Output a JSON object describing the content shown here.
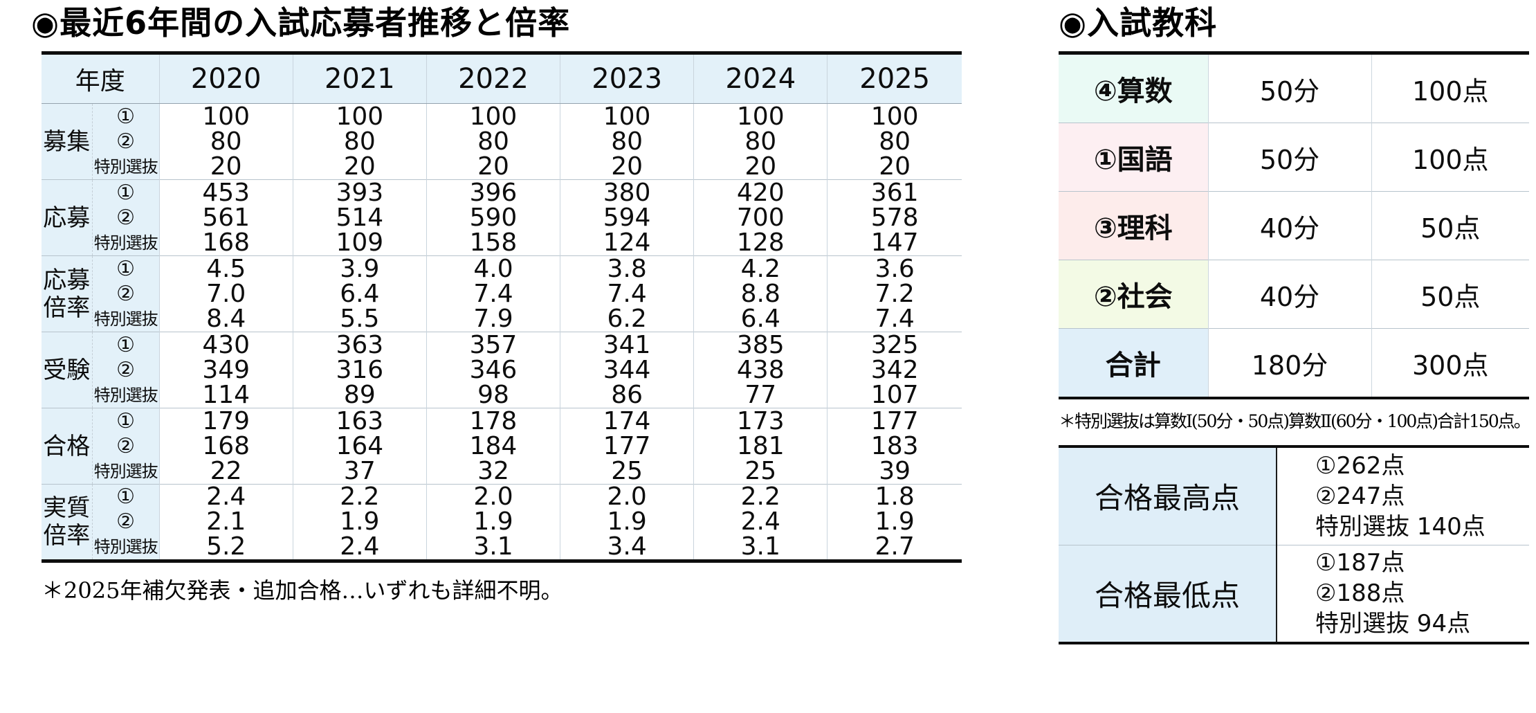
{
  "left": {
    "title": "◉最近6年間の入試応募者推移と倍率",
    "table": {
      "year_label": "年度",
      "years": [
        "2020",
        "2021",
        "2022",
        "2023",
        "2024",
        "2025"
      ],
      "sub_labels": [
        "①",
        "②",
        "特別選抜"
      ],
      "rows": [
        {
          "category": "募集",
          "values": [
            [
              "100",
              "80",
              "20"
            ],
            [
              "100",
              "80",
              "20"
            ],
            [
              "100",
              "80",
              "20"
            ],
            [
              "100",
              "80",
              "20"
            ],
            [
              "100",
              "80",
              "20"
            ],
            [
              "100",
              "80",
              "20"
            ]
          ]
        },
        {
          "category": "応募",
          "values": [
            [
              "453",
              "561",
              "168"
            ],
            [
              "393",
              "514",
              "109"
            ],
            [
              "396",
              "590",
              "158"
            ],
            [
              "380",
              "594",
              "124"
            ],
            [
              "420",
              "700",
              "128"
            ],
            [
              "361",
              "578",
              "147"
            ]
          ]
        },
        {
          "category": "応募倍率",
          "values": [
            [
              "4.5",
              "7.0",
              "8.4"
            ],
            [
              "3.9",
              "6.4",
              "5.5"
            ],
            [
              "4.0",
              "7.4",
              "7.9"
            ],
            [
              "3.8",
              "7.4",
              "6.2"
            ],
            [
              "4.2",
              "8.8",
              "6.4"
            ],
            [
              "3.6",
              "7.2",
              "7.4"
            ]
          ]
        },
        {
          "category": "受験",
          "values": [
            [
              "430",
              "349",
              "114"
            ],
            [
              "363",
              "316",
              "89"
            ],
            [
              "357",
              "346",
              "98"
            ],
            [
              "341",
              "344",
              "86"
            ],
            [
              "385",
              "438",
              "77"
            ],
            [
              "325",
              "342",
              "107"
            ]
          ]
        },
        {
          "category": "合格",
          "values": [
            [
              "179",
              "168",
              "22"
            ],
            [
              "163",
              "164",
              "37"
            ],
            [
              "178",
              "184",
              "32"
            ],
            [
              "174",
              "177",
              "25"
            ],
            [
              "173",
              "181",
              "25"
            ],
            [
              "177",
              "183",
              "39"
            ]
          ]
        },
        {
          "category": "実質倍率",
          "values": [
            [
              "2.4",
              "2.1",
              "5.2"
            ],
            [
              "2.2",
              "1.9",
              "2.4"
            ],
            [
              "2.0",
              "1.9",
              "3.1"
            ],
            [
              "2.0",
              "1.9",
              "3.4"
            ],
            [
              "2.2",
              "2.4",
              "3.1"
            ],
            [
              "1.8",
              "1.9",
              "2.7"
            ]
          ]
        }
      ]
    },
    "footnote": "＊2025年補欠発表・追加合格…いずれも詳細不明。"
  },
  "right": {
    "title": "◉入試教科",
    "subjects": {
      "rows": [
        {
          "label": "④算数",
          "time": "50分",
          "points": "100点",
          "color": "#eafaf5"
        },
        {
          "label": "①国語",
          "time": "50分",
          "points": "100点",
          "color": "#fdeff2"
        },
        {
          "label": "③理科",
          "time": "40分",
          "points": "50点",
          "color": "#fdeceb"
        },
        {
          "label": "②社会",
          "time": "40分",
          "points": "50点",
          "color": "#f3fae5"
        },
        {
          "label": "合計",
          "time": "180分",
          "points": "300点",
          "color": "#e0eff9"
        }
      ]
    },
    "footnote": "＊特別選抜は算数Ⅰ(50分・50点)算数Ⅱ(60分・100点)合計150点。",
    "scores": {
      "rows": [
        {
          "label": "合格最高点",
          "lines": [
            "①262点",
            "②247点",
            "特別選抜 140点"
          ]
        },
        {
          "label": "合格最低点",
          "lines": [
            "①187点",
            "②188点",
            "特別選抜 94点"
          ]
        }
      ]
    }
  },
  "colors": {
    "table_header_blue": "#e3f1f9",
    "score_label_blue": "#dfeef8",
    "border_black": "#0d0d0d",
    "grid_gray": "#b7c3cc"
  }
}
